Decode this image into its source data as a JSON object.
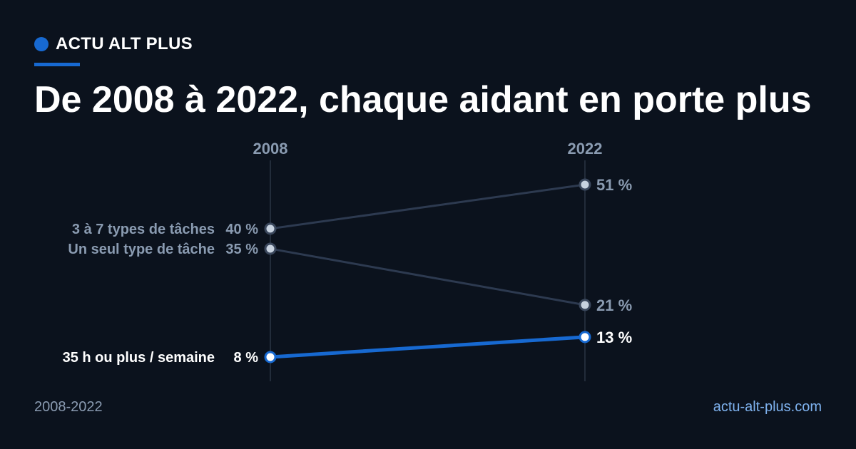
{
  "brand": {
    "name": "ACTU ALT PLUS"
  },
  "headline": "De 2008 à 2022, chaque aidant en porte plus",
  "footer": {
    "period": "2008-2022",
    "site": "actu-alt-plus.com"
  },
  "colors": {
    "background": "#0b121d",
    "accent": "#1769d1",
    "muted_line": "#2d3a50",
    "muted_text": "#8a9bb1",
    "point_fill": "#c8d3e0",
    "highlight_text": "#ffffff"
  },
  "chart_data": {
    "type": "line",
    "subtype": "slope",
    "x": [
      "2008",
      "2022"
    ],
    "series": [
      {
        "name": "3 à 7 types de tâches",
        "values": [
          40,
          51
        ],
        "value_labels": [
          "40 %",
          "51 %"
        ],
        "highlight": false
      },
      {
        "name": "Un seul type de tâche",
        "values": [
          35,
          21
        ],
        "value_labels": [
          "35 %",
          "21 %"
        ],
        "highlight": false
      },
      {
        "name": "35 h ou plus / semaine",
        "values": [
          8,
          13
        ],
        "value_labels": [
          "8 %",
          "13 %"
        ],
        "highlight": true
      }
    ],
    "ylim": [
      8,
      51
    ],
    "grid": false,
    "legend": "inline-left"
  }
}
